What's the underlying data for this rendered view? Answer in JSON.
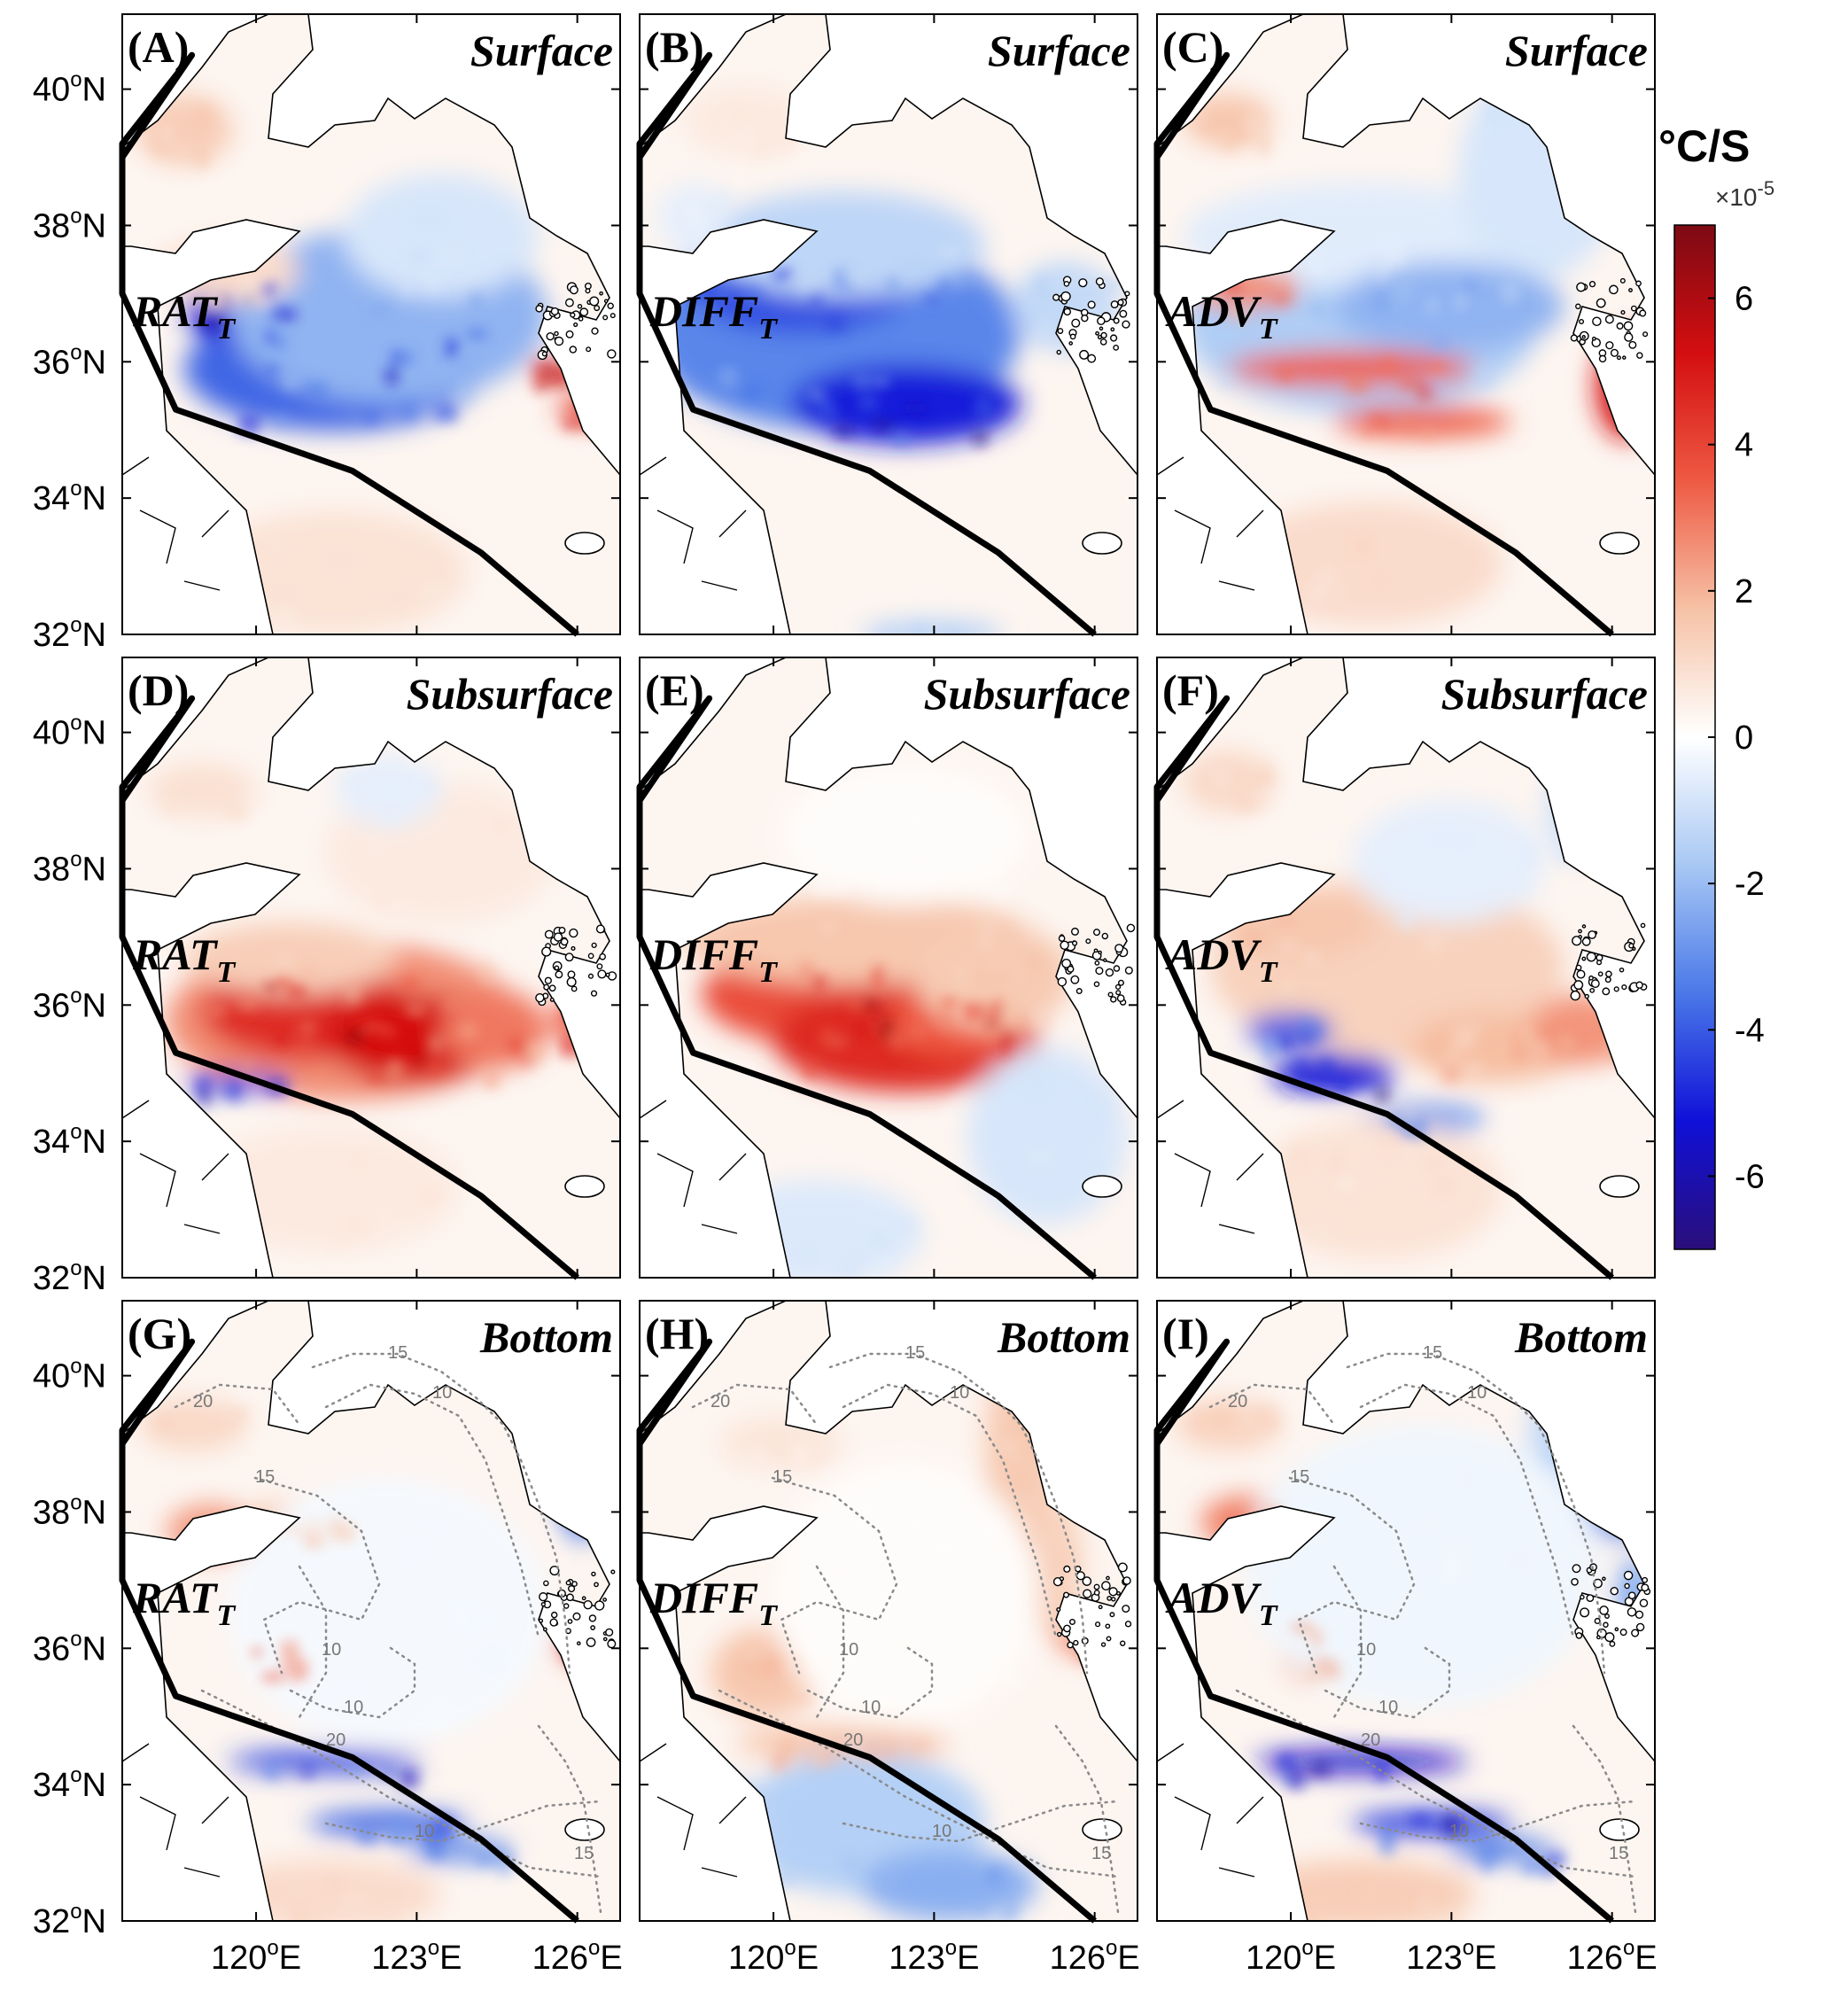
{
  "figure": {
    "panels": [
      {
        "letter": "(A)",
        "depth": "Surface",
        "term_main": "RAT",
        "term_sub": "T",
        "pattern": "surface_rat",
        "contours": false
      },
      {
        "letter": "(B)",
        "depth": "Surface",
        "term_main": "DIFF",
        "term_sub": "T",
        "pattern": "surface_diff",
        "contours": false
      },
      {
        "letter": "(C)",
        "depth": "Surface",
        "term_main": "ADV",
        "term_sub": "T",
        "pattern": "surface_adv",
        "contours": false
      },
      {
        "letter": "(D)",
        "depth": "Subsurface",
        "term_main": "RAT",
        "term_sub": "T",
        "pattern": "sub_rat",
        "contours": false
      },
      {
        "letter": "(E)",
        "depth": "Subsurface",
        "term_main": "DIFF",
        "term_sub": "T",
        "pattern": "sub_diff",
        "contours": false
      },
      {
        "letter": "(F)",
        "depth": "Subsurface",
        "term_main": "ADV",
        "term_sub": "T",
        "pattern": "sub_adv",
        "contours": false
      },
      {
        "letter": "(G)",
        "depth": "Bottom",
        "term_main": "RAT",
        "term_sub": "T",
        "pattern": "bot_rat",
        "contours": true
      },
      {
        "letter": "(H)",
        "depth": "Bottom",
        "term_main": "DIFF",
        "term_sub": "T",
        "pattern": "bot_diff",
        "contours": true
      },
      {
        "letter": "(I)",
        "depth": "Bottom",
        "term_main": "ADV",
        "term_sub": "T",
        "pattern": "bot_adv",
        "contours": true
      }
    ],
    "lat_ticks": [
      {
        "deg": "40",
        "hemi": "N",
        "value": 40
      },
      {
        "deg": "38",
        "hemi": "N",
        "value": 38
      },
      {
        "deg": "36",
        "hemi": "N",
        "value": 36
      },
      {
        "deg": "34",
        "hemi": "N",
        "value": 34
      },
      {
        "deg": "32",
        "hemi": "N",
        "value": 32
      }
    ],
    "lon_ticks": [
      {
        "deg": "120",
        "hemi": "E",
        "value": 120
      },
      {
        "deg": "123",
        "hemi": "E",
        "value": 123
      },
      {
        "deg": "126",
        "hemi": "E",
        "value": 126
      }
    ],
    "extent": {
      "lon_min": 117.5,
      "lon_max": 126.8,
      "lat_min": 32,
      "lat_max": 41.1
    },
    "boundary_line": [
      [
        117.5,
        39.0
      ],
      [
        118.8,
        40.5
      ],
      [
        117.5,
        39.2
      ],
      [
        117.5,
        37.0
      ],
      [
        118.5,
        35.3
      ],
      [
        121.8,
        34.4
      ],
      [
        124.2,
        33.2
      ],
      [
        126.0,
        32.0
      ]
    ],
    "contour_values": [
      "10",
      "15",
      "20"
    ],
    "colorbar": {
      "unit": "°C/S",
      "exponent_prefix": "×10",
      "exponent_power": "-5",
      "ticks": [
        "6",
        "4",
        "2",
        "0",
        "-2",
        "-4",
        "-6"
      ],
      "tick_values": [
        6,
        4,
        2,
        0,
        -2,
        -4,
        -6
      ],
      "range": [
        -7,
        7
      ],
      "colormap": "balance",
      "colors": [
        "#2a0f7a",
        "#1010d8",
        "#4a78e8",
        "#a8c8f4",
        "#ffffff",
        "#f6c2a6",
        "#ee5a44",
        "#d40e10",
        "#7c0a14"
      ]
    },
    "colors": {
      "land": "#ffffff",
      "coastline": "#000000",
      "boundary": "#000000",
      "contour": "#8a8a8a",
      "frame": "#000000"
    }
  }
}
